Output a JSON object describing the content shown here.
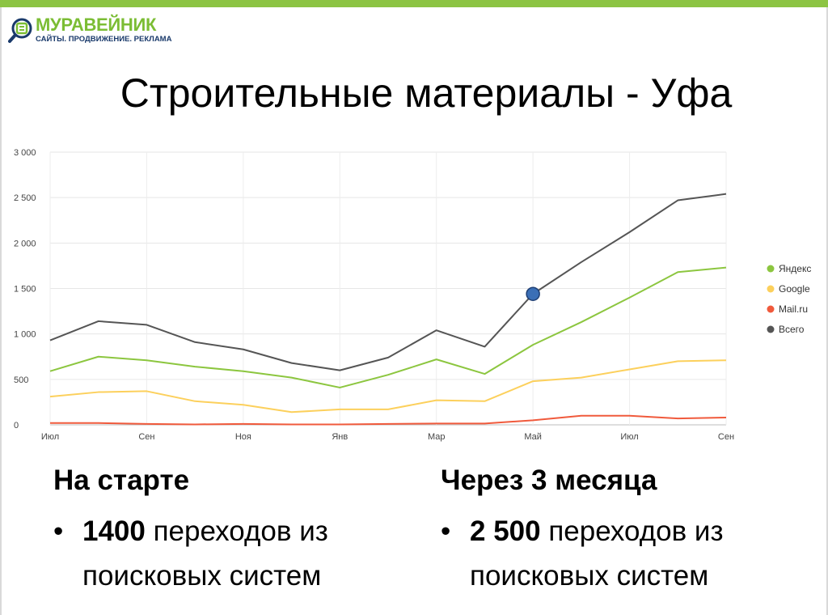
{
  "logo": {
    "name": "МУРАВЕЙНИК",
    "tagline": "САЙТЫ. ПРОДВИЖЕНИЕ. РЕКЛАМА",
    "brand_green": "#7bbd34",
    "brand_navy": "#1a3a6b"
  },
  "slide": {
    "title": "Строительные материалы - Уфа"
  },
  "chart_data": {
    "type": "line",
    "x": [
      "Июл",
      "",
      "Сен",
      "",
      "Ноя",
      "",
      "Янв",
      "",
      "Мар",
      "",
      "Май",
      "",
      "Июл",
      "",
      "Сен"
    ],
    "x_tick_labels": [
      "Июл",
      "Сен",
      "Ноя",
      "Янв",
      "Мар",
      "Май",
      "Июл",
      "Сен"
    ],
    "y_tick_labels": [
      "0",
      "500",
      "1 000",
      "1 500",
      "2 000",
      "2 500",
      "3 000"
    ],
    "ylim": [
      0,
      3000
    ],
    "grid": true,
    "legend_position": "right",
    "series": [
      {
        "name": "Яндекс",
        "color": "#8cc63f",
        "values": [
          590,
          750,
          710,
          640,
          590,
          520,
          410,
          550,
          720,
          560,
          880,
          1130,
          1400,
          1680,
          1730
        ]
      },
      {
        "name": "Google",
        "color": "#fcd05c",
        "values": [
          310,
          360,
          370,
          260,
          220,
          140,
          170,
          170,
          270,
          260,
          480,
          520,
          610,
          700,
          710
        ]
      },
      {
        "name": "Mail.ru",
        "color": "#f05a3c",
        "values": [
          20,
          20,
          10,
          5,
          10,
          5,
          5,
          10,
          15,
          15,
          50,
          100,
          100,
          70,
          80
        ]
      },
      {
        "name": "Всего",
        "color": "#555555",
        "values": [
          930,
          1140,
          1100,
          910,
          830,
          680,
          600,
          740,
          1040,
          860,
          1440,
          1790,
          2120,
          2470,
          2540
        ]
      }
    ],
    "highlight": {
      "series": "Всего",
      "index": 10,
      "value": 1440,
      "color": "#3b6fb6"
    }
  },
  "columns": [
    {
      "heading": "На старте",
      "bold_value": "1400",
      "line1_rest": " переходов из",
      "line2": "поисковых систем"
    },
    {
      "heading": "Через 3 месяца",
      "bold_value": "2 500",
      "line1_rest": " переходов из",
      "line2": "поисковых систем"
    }
  ]
}
